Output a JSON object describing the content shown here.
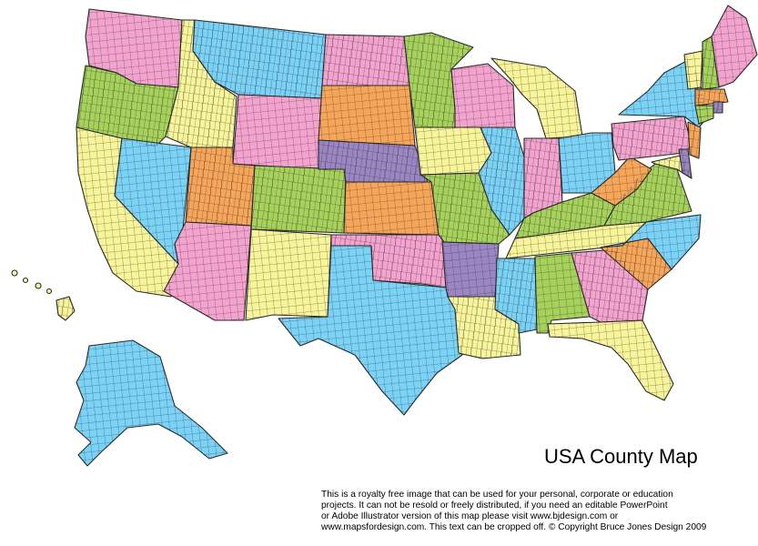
{
  "title": "USA County Map",
  "notice_lines": [
    "This is a royalty free image that can be used for your personal, corporate or education",
    "projects. It can not be resold or freely distributed, if you need an editable PowerPoint",
    "or Adobe Illustrator version of this map please visit www.bjdesign.com or",
    "www.mapsfordesign.com.  This text can be cropped off.  © Copyright Bruce Jones Design 2009"
  ],
  "palette": {
    "pink": "#f4a3cf",
    "blue": "#7ad3f7",
    "green": "#a6d15a",
    "yellow": "#f8f49a",
    "orange": "#f7a659",
    "purple": "#9b86c3",
    "county_line": "#2a2a2a"
  },
  "states": [
    {
      "name": "Washington",
      "color": "pink"
    },
    {
      "name": "Oregon",
      "color": "green"
    },
    {
      "name": "California",
      "color": "yellow"
    },
    {
      "name": "Idaho",
      "color": "yellow"
    },
    {
      "name": "Nevada",
      "color": "blue"
    },
    {
      "name": "Montana",
      "color": "blue"
    },
    {
      "name": "Wyoming",
      "color": "pink"
    },
    {
      "name": "Utah",
      "color": "orange"
    },
    {
      "name": "Arizona",
      "color": "pink"
    },
    {
      "name": "Colorado",
      "color": "green"
    },
    {
      "name": "New Mexico",
      "color": "yellow"
    },
    {
      "name": "North Dakota",
      "color": "pink"
    },
    {
      "name": "South Dakota",
      "color": "orange"
    },
    {
      "name": "Nebraska",
      "color": "purple"
    },
    {
      "name": "Kansas",
      "color": "orange"
    },
    {
      "name": "Oklahoma",
      "color": "pink"
    },
    {
      "name": "Texas",
      "color": "blue"
    },
    {
      "name": "Minnesota",
      "color": "green"
    },
    {
      "name": "Iowa",
      "color": "yellow"
    },
    {
      "name": "Missouri",
      "color": "green"
    },
    {
      "name": "Arkansas",
      "color": "purple"
    },
    {
      "name": "Louisiana",
      "color": "yellow"
    },
    {
      "name": "Wisconsin",
      "color": "pink"
    },
    {
      "name": "Illinois",
      "color": "blue"
    },
    {
      "name": "Michigan",
      "color": "yellow"
    },
    {
      "name": "Indiana",
      "color": "pink"
    },
    {
      "name": "Ohio",
      "color": "blue"
    },
    {
      "name": "Kentucky",
      "color": "green"
    },
    {
      "name": "Tennessee",
      "color": "yellow"
    },
    {
      "name": "Mississippi",
      "color": "blue"
    },
    {
      "name": "Alabama",
      "color": "green"
    },
    {
      "name": "Georgia",
      "color": "pink"
    },
    {
      "name": "Florida",
      "color": "yellow"
    },
    {
      "name": "South Carolina",
      "color": "orange"
    },
    {
      "name": "North Carolina",
      "color": "blue"
    },
    {
      "name": "Virginia",
      "color": "green"
    },
    {
      "name": "West Virginia",
      "color": "orange"
    },
    {
      "name": "Pennsylvania",
      "color": "pink"
    },
    {
      "name": "New York",
      "color": "blue"
    },
    {
      "name": "Maryland",
      "color": "yellow"
    },
    {
      "name": "Delaware",
      "color": "purple"
    },
    {
      "name": "New Jersey",
      "color": "orange"
    },
    {
      "name": "Vermont",
      "color": "yellow"
    },
    {
      "name": "New Hampshire",
      "color": "green"
    },
    {
      "name": "Maine",
      "color": "pink"
    },
    {
      "name": "Massachusetts",
      "color": "orange"
    },
    {
      "name": "Connecticut",
      "color": "green"
    },
    {
      "name": "Rhode Island",
      "color": "purple"
    },
    {
      "name": "Alaska",
      "color": "blue"
    },
    {
      "name": "Hawaii",
      "color": "yellow"
    }
  ]
}
